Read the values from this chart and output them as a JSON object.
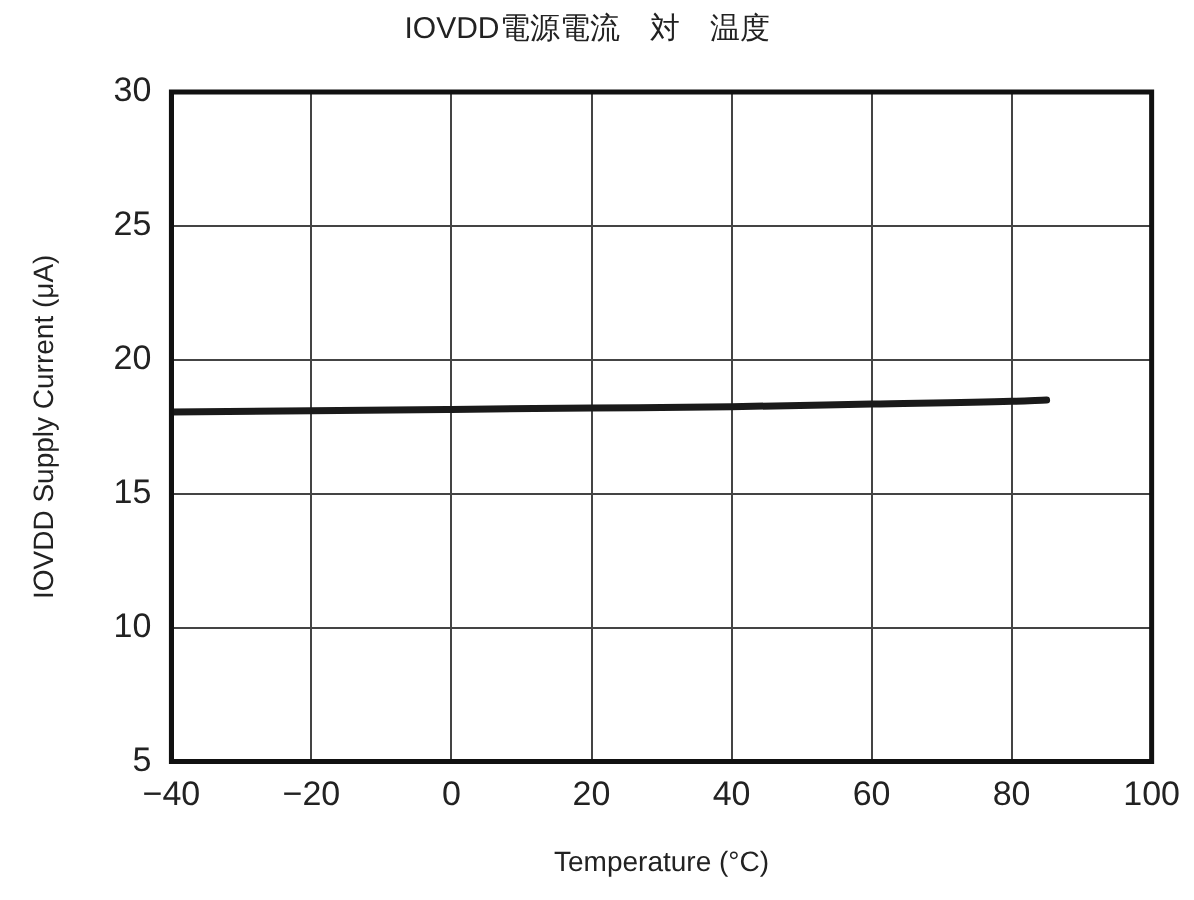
{
  "chart_data": {
    "type": "line",
    "title": "IOVDD電源電流　対　温度",
    "xlabel": "Temperature (°C)",
    "ylabel": "IOVDD Supply Current (μA)",
    "x": [
      -40,
      -20,
      0,
      20,
      40,
      60,
      80,
      85
    ],
    "series": [
      {
        "color": "#1a1a1a",
        "values": [
          18.05,
          18.1,
          18.15,
          18.2,
          18.25,
          18.35,
          18.45,
          18.5
        ]
      }
    ],
    "xlim": [
      -40,
      100
    ],
    "xticks": [
      {
        "value": -40,
        "label": "−40"
      },
      {
        "value": -20,
        "label": "−20"
      },
      0,
      20,
      40,
      60,
      80,
      100
    ],
    "ylim": [
      5,
      30
    ],
    "yticks": [
      5,
      10,
      15,
      20,
      25,
      30
    ],
    "grid": true,
    "legend": false,
    "marker": "none",
    "line_style": "solid"
  }
}
